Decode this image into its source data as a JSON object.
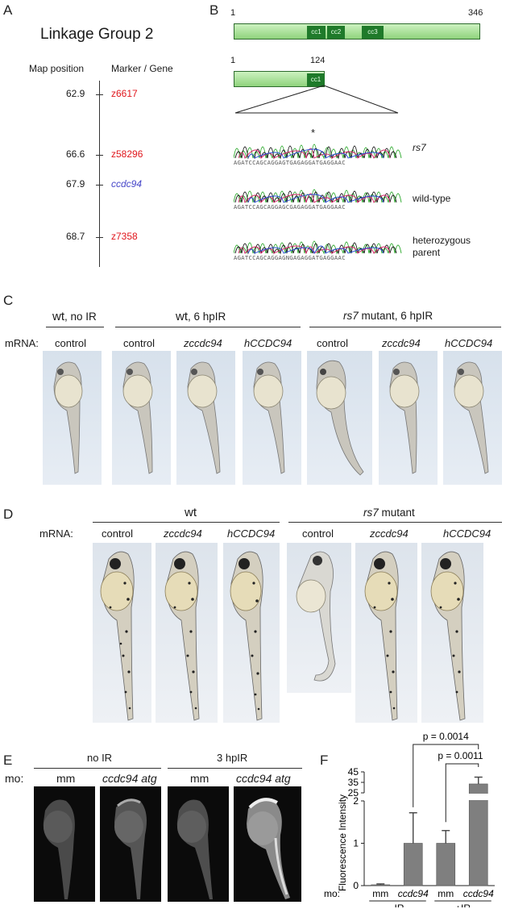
{
  "panels": {
    "a": "A",
    "b": "B",
    "c": "C",
    "d": "D",
    "e": "E",
    "f": "F"
  },
  "panel_a": {
    "title": "Linkage Group 2",
    "header_position": "Map position",
    "header_marker": "Marker / Gene",
    "markers": [
      {
        "position": "62.9",
        "name": "z6617",
        "kind": "marker"
      },
      {
        "position": "66.6",
        "name": "z58296",
        "kind": "marker"
      },
      {
        "position": "67.9",
        "name": "ccdc94",
        "kind": "gene"
      },
      {
        "position": "68.7",
        "name": "z7358",
        "kind": "marker"
      }
    ],
    "colors": {
      "marker": "#e0161c",
      "gene": "#4646c8"
    }
  },
  "panel_b": {
    "full_start": "1",
    "full_end": "346",
    "domains": [
      "cc1",
      "cc2",
      "cc3"
    ],
    "trunc_start": "1",
    "trunc_end": "124",
    "trunc_domain": "cc1",
    "mutation_mark": "*",
    "traces": [
      {
        "label": "rs7",
        "label2": "",
        "seq": "AGATCCAGCAGGAGTGAGAGGATGAGGAAC"
      },
      {
        "label": "wild-type",
        "label2": "",
        "seq": "AGATCCAGCAGGAGCGAGAGGATGAGGAAC"
      },
      {
        "label": "heterozygous",
        "label2": "parent",
        "seq": "AGATCCAGCAGGAGNGAGAGGATGAGGAAC"
      }
    ],
    "colors": {
      "bar": "#a8e098",
      "domain": "#1f7a2a"
    }
  },
  "panel_c": {
    "group1_a": "wt",
    "group1_b": ", no IR",
    "group2_a": "wt",
    "group2_b": ", 6 hpIR",
    "group3_a": "rs7",
    "group3_b": " mutant, 6 hpIR",
    "mrna_label": "mRNA:",
    "conditions": [
      "control",
      "control",
      "zccdc94",
      "hCCDC94",
      "control",
      "zccdc94",
      "hCCDC94"
    ]
  },
  "panel_d": {
    "group1": "wt",
    "group2_a": "rs7",
    "group2_b": " mutant",
    "mrna_label": "mRNA:",
    "conditions": [
      "control",
      "zccdc94",
      "hCCDC94",
      "control",
      "zccdc94",
      "hCCDC94"
    ]
  },
  "panel_e": {
    "group1": "no IR",
    "group2": "3 hpIR",
    "mo_label": "mo:",
    "conditions": [
      "mm",
      "ccdc94 atg",
      "mm",
      "ccdc94 atg"
    ]
  },
  "panel_f": {
    "chart_data": {
      "type": "bar",
      "ylabel": "Fluorescence Intensity",
      "xlabel": "",
      "mo_label": "mo:",
      "categories": [
        "mm",
        "ccdc94",
        "mm",
        "ccdc94"
      ],
      "groups": [
        "-IR",
        "+IR"
      ],
      "values": [
        0.02,
        1.0,
        1.0,
        33.5
      ],
      "errors": [
        0.02,
        0.72,
        0.3,
        6.5
      ],
      "broken_axis": {
        "lower_range": [
          0,
          2
        ],
        "upper_range": [
          25,
          45
        ]
      },
      "yticks_lower": [
        "0",
        "1",
        "2"
      ],
      "yticks_upper": [
        "25",
        "35",
        "45"
      ],
      "p_values": [
        "p = 0.0014",
        "p = 0.0011"
      ],
      "bar_color": "#7f7f7f"
    }
  }
}
